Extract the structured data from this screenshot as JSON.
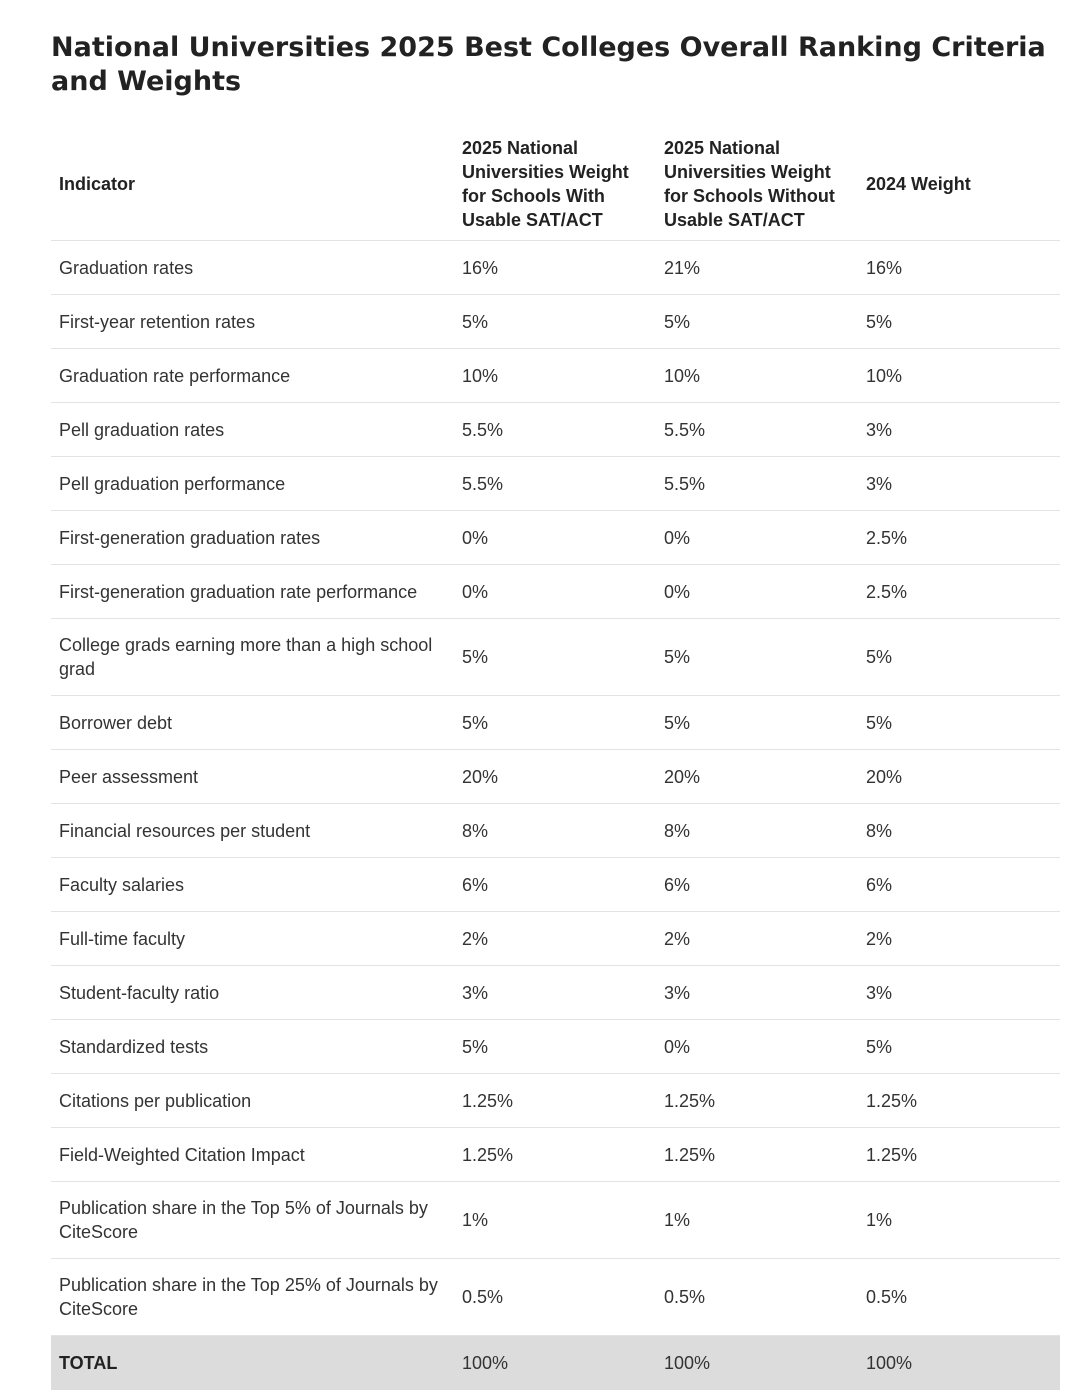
{
  "title": "National Universities 2025 Best Colleges Overall Ranking Criteria and Weights",
  "table": {
    "headers": [
      "Indicator",
      "2025 National Universities Weight for Schools With Usable SAT/ACT",
      "2025 National Universities Weight for Schools Without Usable SAT/ACT",
      "2024 Weight"
    ],
    "rows": [
      [
        "Graduation rates",
        "16%",
        "21%",
        "16%"
      ],
      [
        "First-year retention rates",
        "5%",
        "5%",
        "5%"
      ],
      [
        "Graduation rate performance",
        "10%",
        "10%",
        "10%"
      ],
      [
        "Pell graduation rates",
        "5.5%",
        "5.5%",
        "3%"
      ],
      [
        "Pell graduation performance",
        "5.5%",
        "5.5%",
        "3%"
      ],
      [
        "First-generation graduation rates",
        "0%",
        "0%",
        "2.5%"
      ],
      [
        "First-generation graduation rate performance",
        "0%",
        "0%",
        "2.5%"
      ],
      [
        "College grads earning more than a high school grad",
        "5%",
        "5%",
        "5%"
      ],
      [
        "Borrower debt",
        "5%",
        "5%",
        "5%"
      ],
      [
        "Peer assessment",
        "20%",
        "20%",
        "20%"
      ],
      [
        "Financial resources per student",
        "8%",
        "8%",
        "8%"
      ],
      [
        "Faculty salaries",
        "6%",
        "6%",
        "6%"
      ],
      [
        "Full-time faculty",
        "2%",
        "2%",
        "2%"
      ],
      [
        "Student-faculty ratio",
        "3%",
        "3%",
        "3%"
      ],
      [
        "Standardized tests",
        "5%",
        "0%",
        "5%"
      ],
      [
        "Citations per publication",
        "1.25%",
        "1.25%",
        "1.25%"
      ],
      [
        "Field-Weighted Citation Impact",
        "1.25%",
        "1.25%",
        "1.25%"
      ],
      [
        "Publication share in the Top 5% of Journals by CiteScore",
        "1%",
        "1%",
        "1%"
      ],
      [
        "Publication share in the Top 25% of Journals by CiteScore",
        "0.5%",
        "0.5%",
        "0.5%"
      ]
    ],
    "total": [
      "TOTAL",
      "100%",
      "100%",
      "100%"
    ]
  },
  "colors": {
    "text": "#222222",
    "row_border": "#e3e3e3",
    "total_background": "#dcdcdc"
  }
}
